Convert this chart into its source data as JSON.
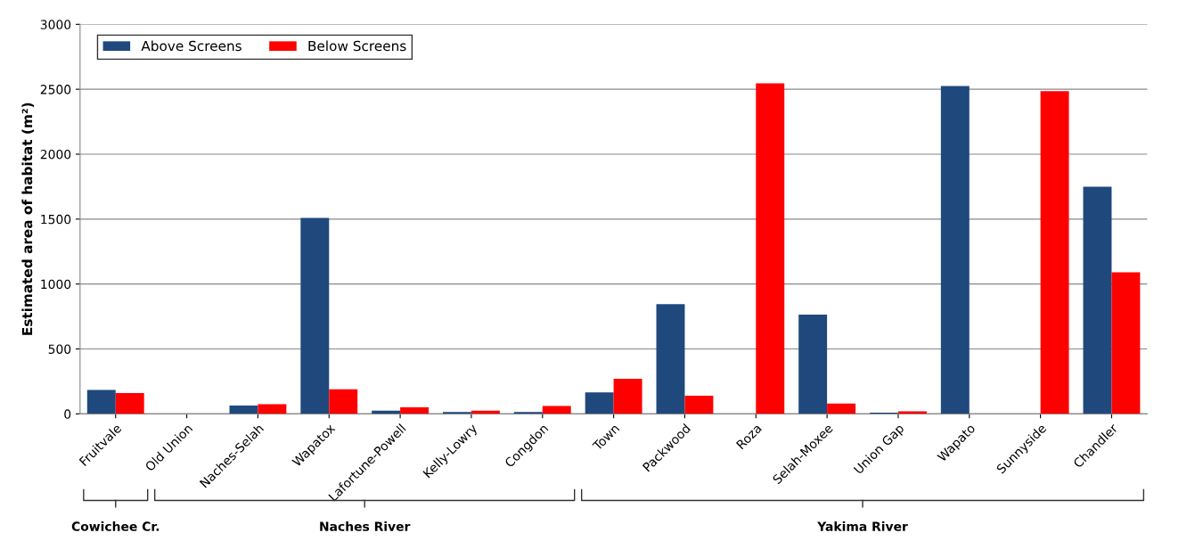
{
  "chart_data": {
    "type": "bar",
    "ylabel": "Estimated area of habitat (m²)",
    "categories": [
      "Fruitvale",
      "Old Union",
      "Naches-Selah",
      "Wapatox",
      "Lafortune-Powell",
      "Kelly-Lowry",
      "Congdon",
      "Town",
      "Packwood",
      "Roza",
      "Selah-Moxee",
      "Union Gap",
      "Wapato",
      "Sunnyside",
      "Chandler"
    ],
    "series": [
      {
        "name": "Above Screens",
        "color": "#1f497d",
        "values": [
          185,
          0,
          65,
          1510,
          25,
          15,
          15,
          165,
          845,
          0,
          765,
          10,
          2525,
          0,
          1750
        ]
      },
      {
        "name": "Below Screens",
        "color": "#ff0000",
        "values": [
          160,
          0,
          75,
          190,
          50,
          25,
          60,
          270,
          140,
          2545,
          80,
          20,
          0,
          2485,
          1090
        ]
      }
    ],
    "ylim": [
      0,
      3000
    ],
    "yticks": [
      0,
      500,
      1000,
      1500,
      2000,
      2500,
      3000
    ],
    "grid": "y",
    "legend": "top left",
    "annotations": [
      "Cowichee Cr.",
      "Naches River",
      "Yakima River"
    ]
  }
}
